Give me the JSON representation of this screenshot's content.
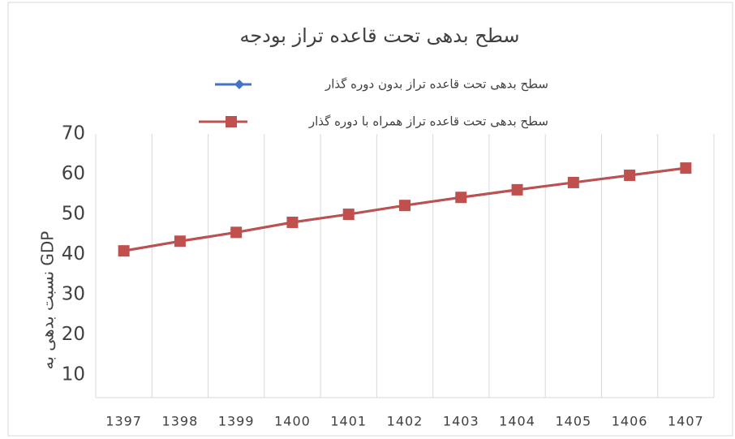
{
  "chart_data": {
    "type": "line",
    "title": "سطح بدهی تحت قاعده تراز بودجه",
    "ylabel": "نسبت بدهی به GDP",
    "categories": [
      "1397",
      "1398",
      "1399",
      "1400",
      "1401",
      "1402",
      "1403",
      "1404",
      "1405",
      "1406",
      "1407"
    ],
    "series": [
      {
        "name": "سطح بدهی تحت قاعده تراز بدون دوره گذار",
        "color": "#4472c4",
        "marker": "diamond",
        "values": [
          40.9,
          43.3,
          45.5,
          48.0,
          50.0,
          52.2,
          54.2,
          56.1,
          57.9,
          59.7,
          61.5
        ]
      },
      {
        "name": "سطح بدهی تحت قاعده تراز همراه با دوره گذار",
        "color": "#c0504d",
        "marker": "square",
        "values": [
          40.9,
          43.3,
          45.5,
          48.0,
          50.0,
          52.2,
          54.2,
          56.1,
          57.9,
          59.7,
          61.5
        ]
      }
    ],
    "ylim": [
      5,
      70
    ],
    "yticks": [
      10,
      20,
      30,
      40,
      50,
      60,
      70
    ],
    "grid": true
  }
}
